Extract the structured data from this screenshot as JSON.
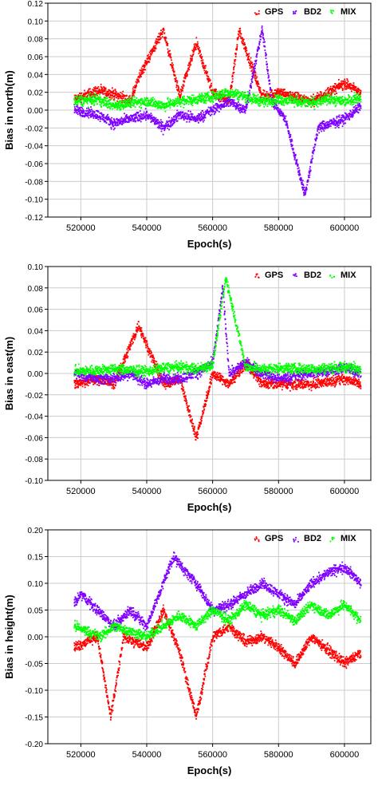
{
  "colors": {
    "GPS": "#ff0000",
    "BD2": "#7f00ff",
    "MIX": "#00ff00",
    "axis": "#000000",
    "grid": "#cccccc"
  },
  "chart_data": [
    {
      "type": "scatter",
      "title": "",
      "xlabel": "Epoch(s)",
      "ylabel": "Bias in north(m)",
      "xlim": [
        510000,
        608000
      ],
      "ylim": [
        -0.12,
        0.12
      ],
      "xticks": [
        520000,
        540000,
        560000,
        580000,
        600000
      ],
      "yticks": [
        -0.12,
        -0.1,
        -0.08,
        -0.06,
        -0.04,
        -0.02,
        0.0,
        0.02,
        0.04,
        0.06,
        0.08,
        0.1,
        0.12
      ],
      "x_range_data": [
        518000,
        605000
      ],
      "grid": true,
      "legend": "top-right",
      "series": [
        {
          "name": "GPS",
          "x": [
            518000,
            525000,
            530000,
            535000,
            538000,
            545000,
            550000,
            555000,
            560000,
            565000,
            568000,
            575000,
            580000,
            590000,
            600000,
            605000
          ],
          "y": [
            0.012,
            0.022,
            0.018,
            0.01,
            0.04,
            0.09,
            0.015,
            0.075,
            0.02,
            0.01,
            0.09,
            0.015,
            0.02,
            0.01,
            0.03,
            0.02
          ]
        },
        {
          "name": "BD2",
          "x": [
            518000,
            525000,
            530000,
            535000,
            540000,
            545000,
            550000,
            555000,
            560000,
            565000,
            570000,
            575000,
            578000,
            582000,
            588000,
            592000,
            600000,
            605000
          ],
          "y": [
            0.0,
            -0.005,
            -0.015,
            -0.01,
            -0.005,
            -0.02,
            -0.005,
            -0.01,
            0.0,
            0.01,
            0.0,
            0.09,
            0.01,
            -0.01,
            -0.095,
            -0.02,
            -0.01,
            0.005
          ]
        },
        {
          "name": "MIX",
          "x": [
            518000,
            525000,
            530000,
            535000,
            540000,
            545000,
            550000,
            555000,
            560000,
            565000,
            570000,
            575000,
            580000,
            585000,
            590000,
            595000,
            600000,
            605000
          ],
          "y": [
            0.01,
            0.012,
            0.005,
            0.008,
            0.01,
            0.005,
            0.01,
            0.012,
            0.015,
            0.02,
            0.015,
            0.01,
            0.012,
            0.01,
            0.008,
            0.012,
            0.01,
            0.015
          ]
        }
      ]
    },
    {
      "type": "scatter",
      "title": "",
      "xlabel": "Epoch(s)",
      "ylabel": "Bias in east(m)",
      "xlim": [
        510000,
        608000
      ],
      "ylim": [
        -0.1,
        0.1
      ],
      "xticks": [
        520000,
        540000,
        560000,
        580000,
        600000
      ],
      "yticks": [
        -0.1,
        -0.08,
        -0.06,
        -0.04,
        -0.02,
        0.0,
        0.02,
        0.04,
        0.06,
        0.08,
        0.1
      ],
      "x_range_data": [
        518000,
        605000
      ],
      "grid": true,
      "legend": "top-right",
      "series": [
        {
          "name": "GPS",
          "x": [
            518000,
            525000,
            530000,
            537500,
            545000,
            550000,
            555000,
            560000,
            565000,
            570000,
            575000,
            580000,
            590000,
            600000,
            605000
          ],
          "y": [
            -0.01,
            -0.005,
            -0.01,
            0.045,
            -0.01,
            -0.005,
            -0.06,
            0.0,
            -0.01,
            0.01,
            -0.01,
            -0.01,
            -0.01,
            -0.005,
            -0.01
          ]
        },
        {
          "name": "BD2",
          "x": [
            518000,
            525000,
            530000,
            535000,
            540000,
            545000,
            550000,
            555000,
            560000,
            563000,
            565000,
            570000,
            575000,
            580000,
            590000,
            600000,
            605000
          ],
          "y": [
            0.0,
            -0.005,
            -0.005,
            0.0,
            -0.01,
            -0.005,
            -0.005,
            0.0,
            0.01,
            0.08,
            0.0,
            0.01,
            0.0,
            -0.005,
            0.0,
            0.005,
            0.0
          ]
        },
        {
          "name": "MIX",
          "x": [
            518000,
            525000,
            530000,
            535000,
            540000,
            545000,
            550000,
            555000,
            560000,
            564000,
            570000,
            575000,
            580000,
            590000,
            600000,
            605000
          ],
          "y": [
            0.002,
            0.003,
            0.004,
            0.003,
            0.002,
            0.005,
            0.006,
            0.004,
            0.008,
            0.09,
            0.006,
            0.004,
            0.005,
            0.004,
            0.006,
            0.005
          ]
        }
      ]
    },
    {
      "type": "scatter",
      "title": "",
      "xlabel": "Epoch(s)",
      "ylabel": "Bias in height(m)",
      "xlim": [
        510000,
        608000
      ],
      "ylim": [
        -0.2,
        0.2
      ],
      "xticks": [
        520000,
        540000,
        560000,
        580000,
        600000
      ],
      "yticks": [
        -0.2,
        -0.15,
        -0.1,
        -0.05,
        0.0,
        0.05,
        0.1,
        0.15,
        0.2
      ],
      "x_range_data": [
        518000,
        605000
      ],
      "grid": true,
      "legend": "top-right",
      "series": [
        {
          "name": "GPS",
          "x": [
            518000,
            525000,
            529000,
            533000,
            540000,
            545000,
            550000,
            555000,
            560000,
            565000,
            570000,
            575000,
            580000,
            585000,
            590000,
            600000,
            605000
          ],
          "y": [
            -0.02,
            0.0,
            -0.15,
            0.0,
            -0.02,
            0.05,
            -0.03,
            -0.15,
            0.0,
            0.02,
            -0.01,
            0.0,
            -0.02,
            -0.05,
            0.0,
            -0.05,
            -0.03
          ]
        },
        {
          "name": "BD2",
          "x": [
            518000,
            520000,
            525000,
            530000,
            535000,
            540000,
            545000,
            548000,
            552000,
            555000,
            560000,
            565000,
            570000,
            575000,
            580000,
            585000,
            590000,
            595000,
            600000,
            605000
          ],
          "y": [
            0.06,
            0.08,
            0.05,
            0.02,
            0.05,
            0.02,
            0.1,
            0.15,
            0.12,
            0.1,
            0.05,
            0.06,
            0.08,
            0.1,
            0.08,
            0.06,
            0.1,
            0.12,
            0.13,
            0.1
          ]
        },
        {
          "name": "MIX",
          "x": [
            518000,
            522000,
            526000,
            530000,
            535000,
            540000,
            545000,
            550000,
            555000,
            560000,
            565000,
            570000,
            575000,
            580000,
            585000,
            590000,
            595000,
            600000,
            605000
          ],
          "y": [
            0.02,
            0.01,
            0.0,
            0.02,
            0.01,
            0.0,
            0.02,
            0.04,
            0.02,
            0.05,
            0.03,
            0.06,
            0.04,
            0.05,
            0.03,
            0.06,
            0.04,
            0.06,
            0.03
          ]
        }
      ]
    }
  ]
}
